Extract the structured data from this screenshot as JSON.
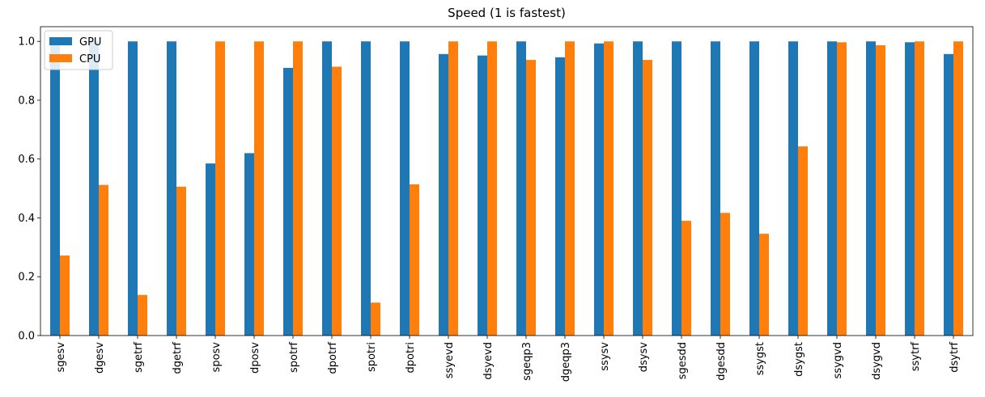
{
  "chart_data": {
    "type": "bar",
    "title": "Speed (1 is fastest)",
    "xlabel": "",
    "ylabel": "",
    "ylim": [
      0,
      1.05
    ],
    "yticks": [
      0.0,
      0.2,
      0.4,
      0.6,
      0.8,
      1.0
    ],
    "ytick_labels": [
      "0.0",
      "0.2",
      "0.4",
      "0.6",
      "0.8",
      "1.0"
    ],
    "grid": false,
    "legend_position": "top-left",
    "categories": [
      "sgesv",
      "dgesv",
      "sgetrf",
      "dgetrf",
      "sposv",
      "dposv",
      "spotrf",
      "dpotrf",
      "spotri",
      "dpotri",
      "ssyevd",
      "dsyevd",
      "sgeqp3",
      "dgeqp3",
      "ssysv",
      "dsysv",
      "sgesdd",
      "dgesdd",
      "ssygst",
      "dsygst",
      "ssygvd",
      "dsygvd",
      "ssytrf",
      "dsytrf"
    ],
    "series": [
      {
        "name": "GPU",
        "color": "#1f77b4",
        "values": [
          1.0,
          1.0,
          1.0,
          1.0,
          0.585,
          0.62,
          0.91,
          1.0,
          1.0,
          1.0,
          0.957,
          0.952,
          1.0,
          0.946,
          0.993,
          1.0,
          1.0,
          1.0,
          1.0,
          1.0,
          1.0,
          1.0,
          0.997,
          0.957
        ]
      },
      {
        "name": "CPU",
        "color": "#ff7f0e",
        "values": [
          0.272,
          0.512,
          0.138,
          0.506,
          1.0,
          1.0,
          1.0,
          0.914,
          0.112,
          0.514,
          1.0,
          1.0,
          0.937,
          1.0,
          1.0,
          0.937,
          0.39,
          0.417,
          0.346,
          0.643,
          0.997,
          0.987,
          1.0,
          1.0
        ]
      }
    ]
  }
}
